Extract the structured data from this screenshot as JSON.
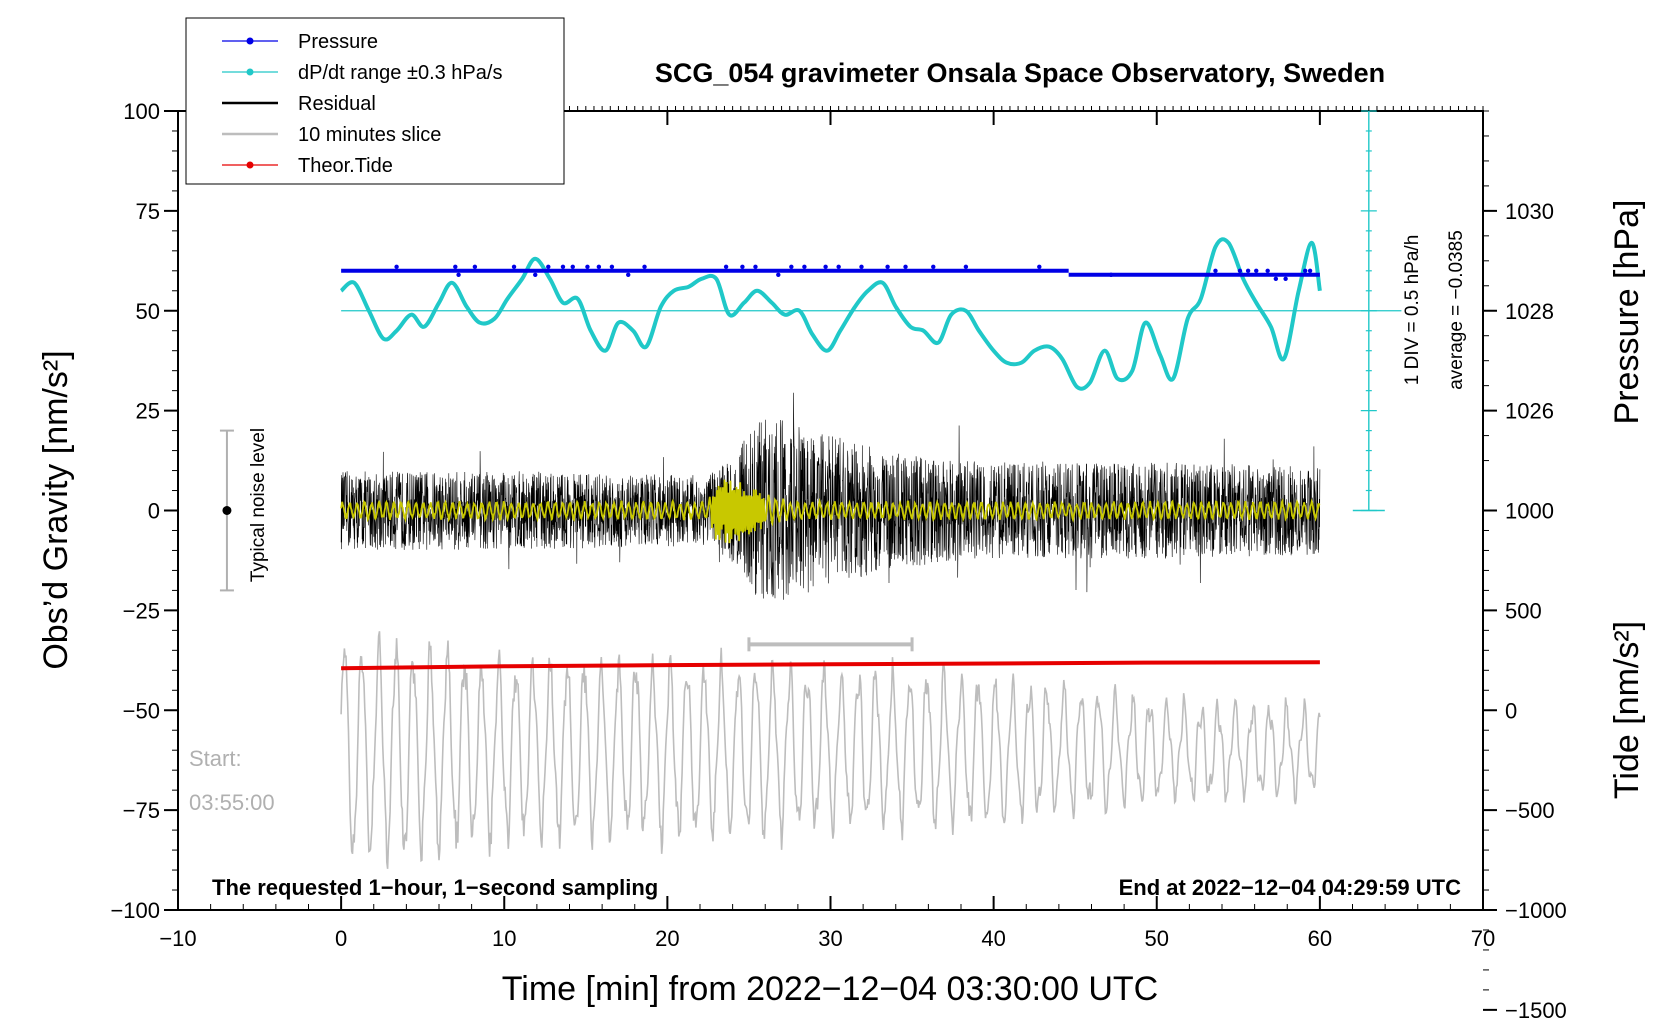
{
  "chart_data": {
    "type": "line",
    "title": "SCG_054 gravimeter Onsala Space Observatory, Sweden",
    "xlabel": "Time [min] from 2022−12−04 03:30:00 UTC",
    "ylabel": "Obs’d Gravity [nm/s²]",
    "ylabel_right_top": "Pressure [hPa]",
    "ylabel_right_bottom": "Tide [nm/s²]",
    "xlim": [
      -10,
      70
    ],
    "ylim": [
      -100,
      100
    ],
    "x_ticks": [
      -10,
      0,
      10,
      20,
      30,
      40,
      50,
      60,
      70
    ],
    "x_tick_labels": [
      "−10",
      "0",
      "10",
      "20",
      "30",
      "40",
      "50",
      "60",
      "70"
    ],
    "y_ticks": [
      -100,
      -75,
      -50,
      -25,
      0,
      25,
      50,
      75,
      100
    ],
    "y_tick_labels": [
      "−100",
      "−75",
      "−50",
      "−25",
      "0",
      "25",
      "50",
      "75",
      "100"
    ],
    "pressure_axis": {
      "ticks": [
        1026,
        1028,
        1030
      ],
      "tick_labels": [
        "1026",
        "1028",
        "1030"
      ],
      "zero_on_gravity": 50,
      "gravity_per_hPa": 12.5
    },
    "tide_axis": {
      "ticks": [
        -1500,
        -1000,
        -500,
        0,
        500,
        1000
      ],
      "tick_labels": [
        "−1500",
        "−1000",
        "−500",
        "0",
        "500",
        "1000"
      ],
      "zero_on_gravity": -50,
      "gravity_per_unit": 0.05
    },
    "legend": [
      {
        "label": "Pressure",
        "color": "#0000e6",
        "marker": true
      },
      {
        "label": "dP/dt range ±0.3 hPa/s",
        "color": "#20c8c8",
        "marker": true
      },
      {
        "label": "Residual",
        "color": "#000000",
        "marker": false
      },
      {
        "label": "10 minutes slice",
        "color": "#bdbdbd",
        "marker": false
      },
      {
        "label": "Theor.Tide",
        "color": "#e60000",
        "marker": true
      }
    ],
    "series": [
      {
        "name": "Pressure",
        "color": "#0000e6",
        "x": [
          0,
          44.6,
          44.6,
          60
        ],
        "y": [
          60,
          60,
          59,
          59
        ],
        "outliers_x": [
          3.4,
          7,
          7.2,
          8.2,
          10.6,
          11.9,
          12.7,
          13.6,
          14.2,
          15.1,
          15.8,
          16.6,
          17.6,
          18.6,
          23.6,
          24.6,
          25.4,
          26.8,
          27.6,
          28.4,
          29.7,
          30.5,
          31.9,
          33.5,
          34.6,
          36.3,
          38.3,
          42.8,
          47.2,
          53.6,
          55.1,
          55.6,
          56.1,
          56.8,
          57.3,
          57.9,
          59.1,
          59.4
        ],
        "outliers_y": [
          61,
          61,
          59,
          61,
          61,
          59,
          61,
          61,
          61,
          61,
          61,
          61,
          59,
          61,
          61,
          61,
          61,
          59,
          61,
          61,
          61,
          61,
          61,
          61,
          61,
          61,
          61,
          61,
          59,
          60,
          60,
          60,
          60,
          60,
          58,
          58,
          60,
          60
        ]
      },
      {
        "name": "dP/dt range ±0.3 hPa/s",
        "color": "#20c8c8",
        "x": [
          0,
          0.8,
          1.7,
          2.6,
          3.4,
          4.3,
          5.1,
          6.0,
          6.8,
          7.7,
          8.5,
          9.4,
          10.2,
          11.1,
          11.9,
          12.8,
          13.6,
          14.5,
          15.3,
          16.2,
          17.0,
          17.9,
          18.7,
          19.6,
          20.4,
          21.3,
          22.1,
          23.0,
          23.8,
          24.7,
          25.5,
          26.4,
          27.2,
          28.1,
          28.9,
          29.8,
          30.6,
          31.5,
          32.3,
          33.2,
          34.0,
          34.9,
          35.7,
          36.6,
          37.4,
          38.3,
          39.1,
          40.0,
          40.8,
          41.7,
          42.5,
          43.4,
          44.2,
          45.1,
          45.9,
          46.8,
          47.6,
          48.5,
          49.3,
          50.2,
          51.0,
          51.9,
          52.7,
          53.6,
          54.4,
          55.3,
          56.1,
          57.0,
          57.8,
          58.7,
          59.5,
          60
        ],
        "y": [
          55,
          57,
          50,
          43,
          45,
          49,
          46,
          52,
          57,
          51,
          47,
          48,
          53,
          58,
          63,
          58,
          52,
          53,
          45,
          40,
          47,
          45,
          41,
          51,
          55,
          56,
          58,
          58,
          49,
          52,
          55,
          52,
          49,
          50,
          44,
          40,
          45,
          51,
          55,
          57,
          51,
          46,
          45,
          42,
          49,
          50,
          45,
          40,
          37,
          37,
          40,
          41,
          38,
          31,
          32,
          40,
          33,
          35,
          47,
          39,
          33,
          48,
          53,
          66,
          67,
          58,
          52,
          46,
          38,
          55,
          67,
          55
        ]
      },
      {
        "name": "Residual",
        "color": "#000000",
        "x": [
          0,
          60
        ],
        "envelope_x": [
          0,
          10,
          22.5,
          24,
          25.8,
          27.5,
          30,
          34,
          40,
          50,
          60
        ],
        "envelope_amp": [
          9,
          9,
          8,
          12,
          22,
          20,
          17,
          13,
          11,
          11,
          10
        ]
      },
      {
        "name": "Smoothed residual",
        "color": "#c8c800",
        "x": [
          0,
          60
        ],
        "envelope_x": [
          0,
          22.5,
          23,
          24,
          25,
          26.5,
          28,
          60
        ],
        "envelope_amp": [
          2,
          2,
          7,
          8,
          6,
          3,
          2,
          2
        ]
      },
      {
        "name": "10 minutes slice",
        "color": "#bdbdbd",
        "x": [
          0,
          60
        ],
        "center": -60,
        "envelope_x": [
          0,
          5,
          10,
          20,
          30,
          40,
          50,
          60
        ],
        "envelope_amp": [
          27,
          26,
          22,
          22,
          20,
          18,
          12,
          10
        ]
      },
      {
        "name": "Theor.Tide",
        "color": "#e60000",
        "x": [
          0,
          10,
          20,
          30,
          40,
          48,
          60
        ],
        "y": [
          -39.5,
          -39,
          -38.7,
          -38.5,
          -38.3,
          -38.1,
          -38
        ]
      }
    ],
    "slice_marker": {
      "x_start": 25,
      "x_end": 35,
      "y": -33.5
    },
    "noise_level": {
      "x": -7,
      "y_center": 0,
      "y_half_range": 20,
      "label": "Typical noise level"
    },
    "pressure_scale_note": "1 DIV = 0.5 hPa/h",
    "pressure_average_note": "average = −0.0385",
    "start_label": "Start:",
    "start_time": "03:55:00",
    "annotation_left": "The requested 1−hour, 1−second sampling",
    "annotation_right": "End at 2022−12−04 04:29:59 UTC"
  }
}
